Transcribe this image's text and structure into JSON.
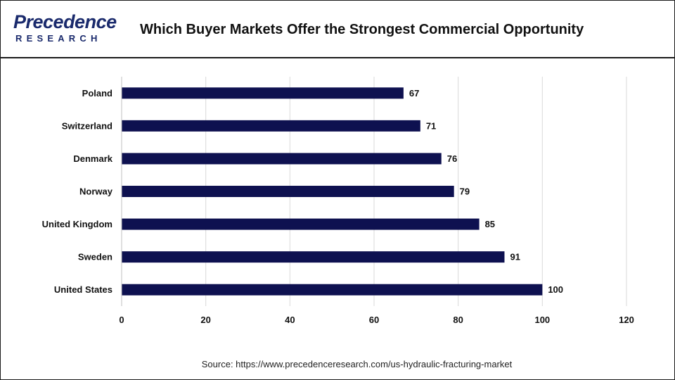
{
  "header": {
    "logo_top": "Precedence",
    "logo_bottom": "RESEARCH",
    "title": "Which Buyer Markets Offer the Strongest Commercial Opportunity"
  },
  "footer": {
    "source": "Source: https://www.precedenceresearch.com/us-hydraulic-fracturing-market"
  },
  "chart_data": {
    "type": "bar",
    "orientation": "horizontal",
    "categories": [
      "Poland",
      "Switzerland",
      "Denmark",
      "Norway",
      "United Kingdom",
      "Sweden",
      "United States"
    ],
    "values": [
      67,
      71,
      76,
      79,
      85,
      91,
      100
    ],
    "xlim": [
      0,
      120
    ],
    "xticks": [
      0,
      20,
      40,
      60,
      80,
      100,
      120
    ],
    "grid": "vertical",
    "legend": "none",
    "data_labels": true,
    "bar_color": "#0e1150"
  }
}
